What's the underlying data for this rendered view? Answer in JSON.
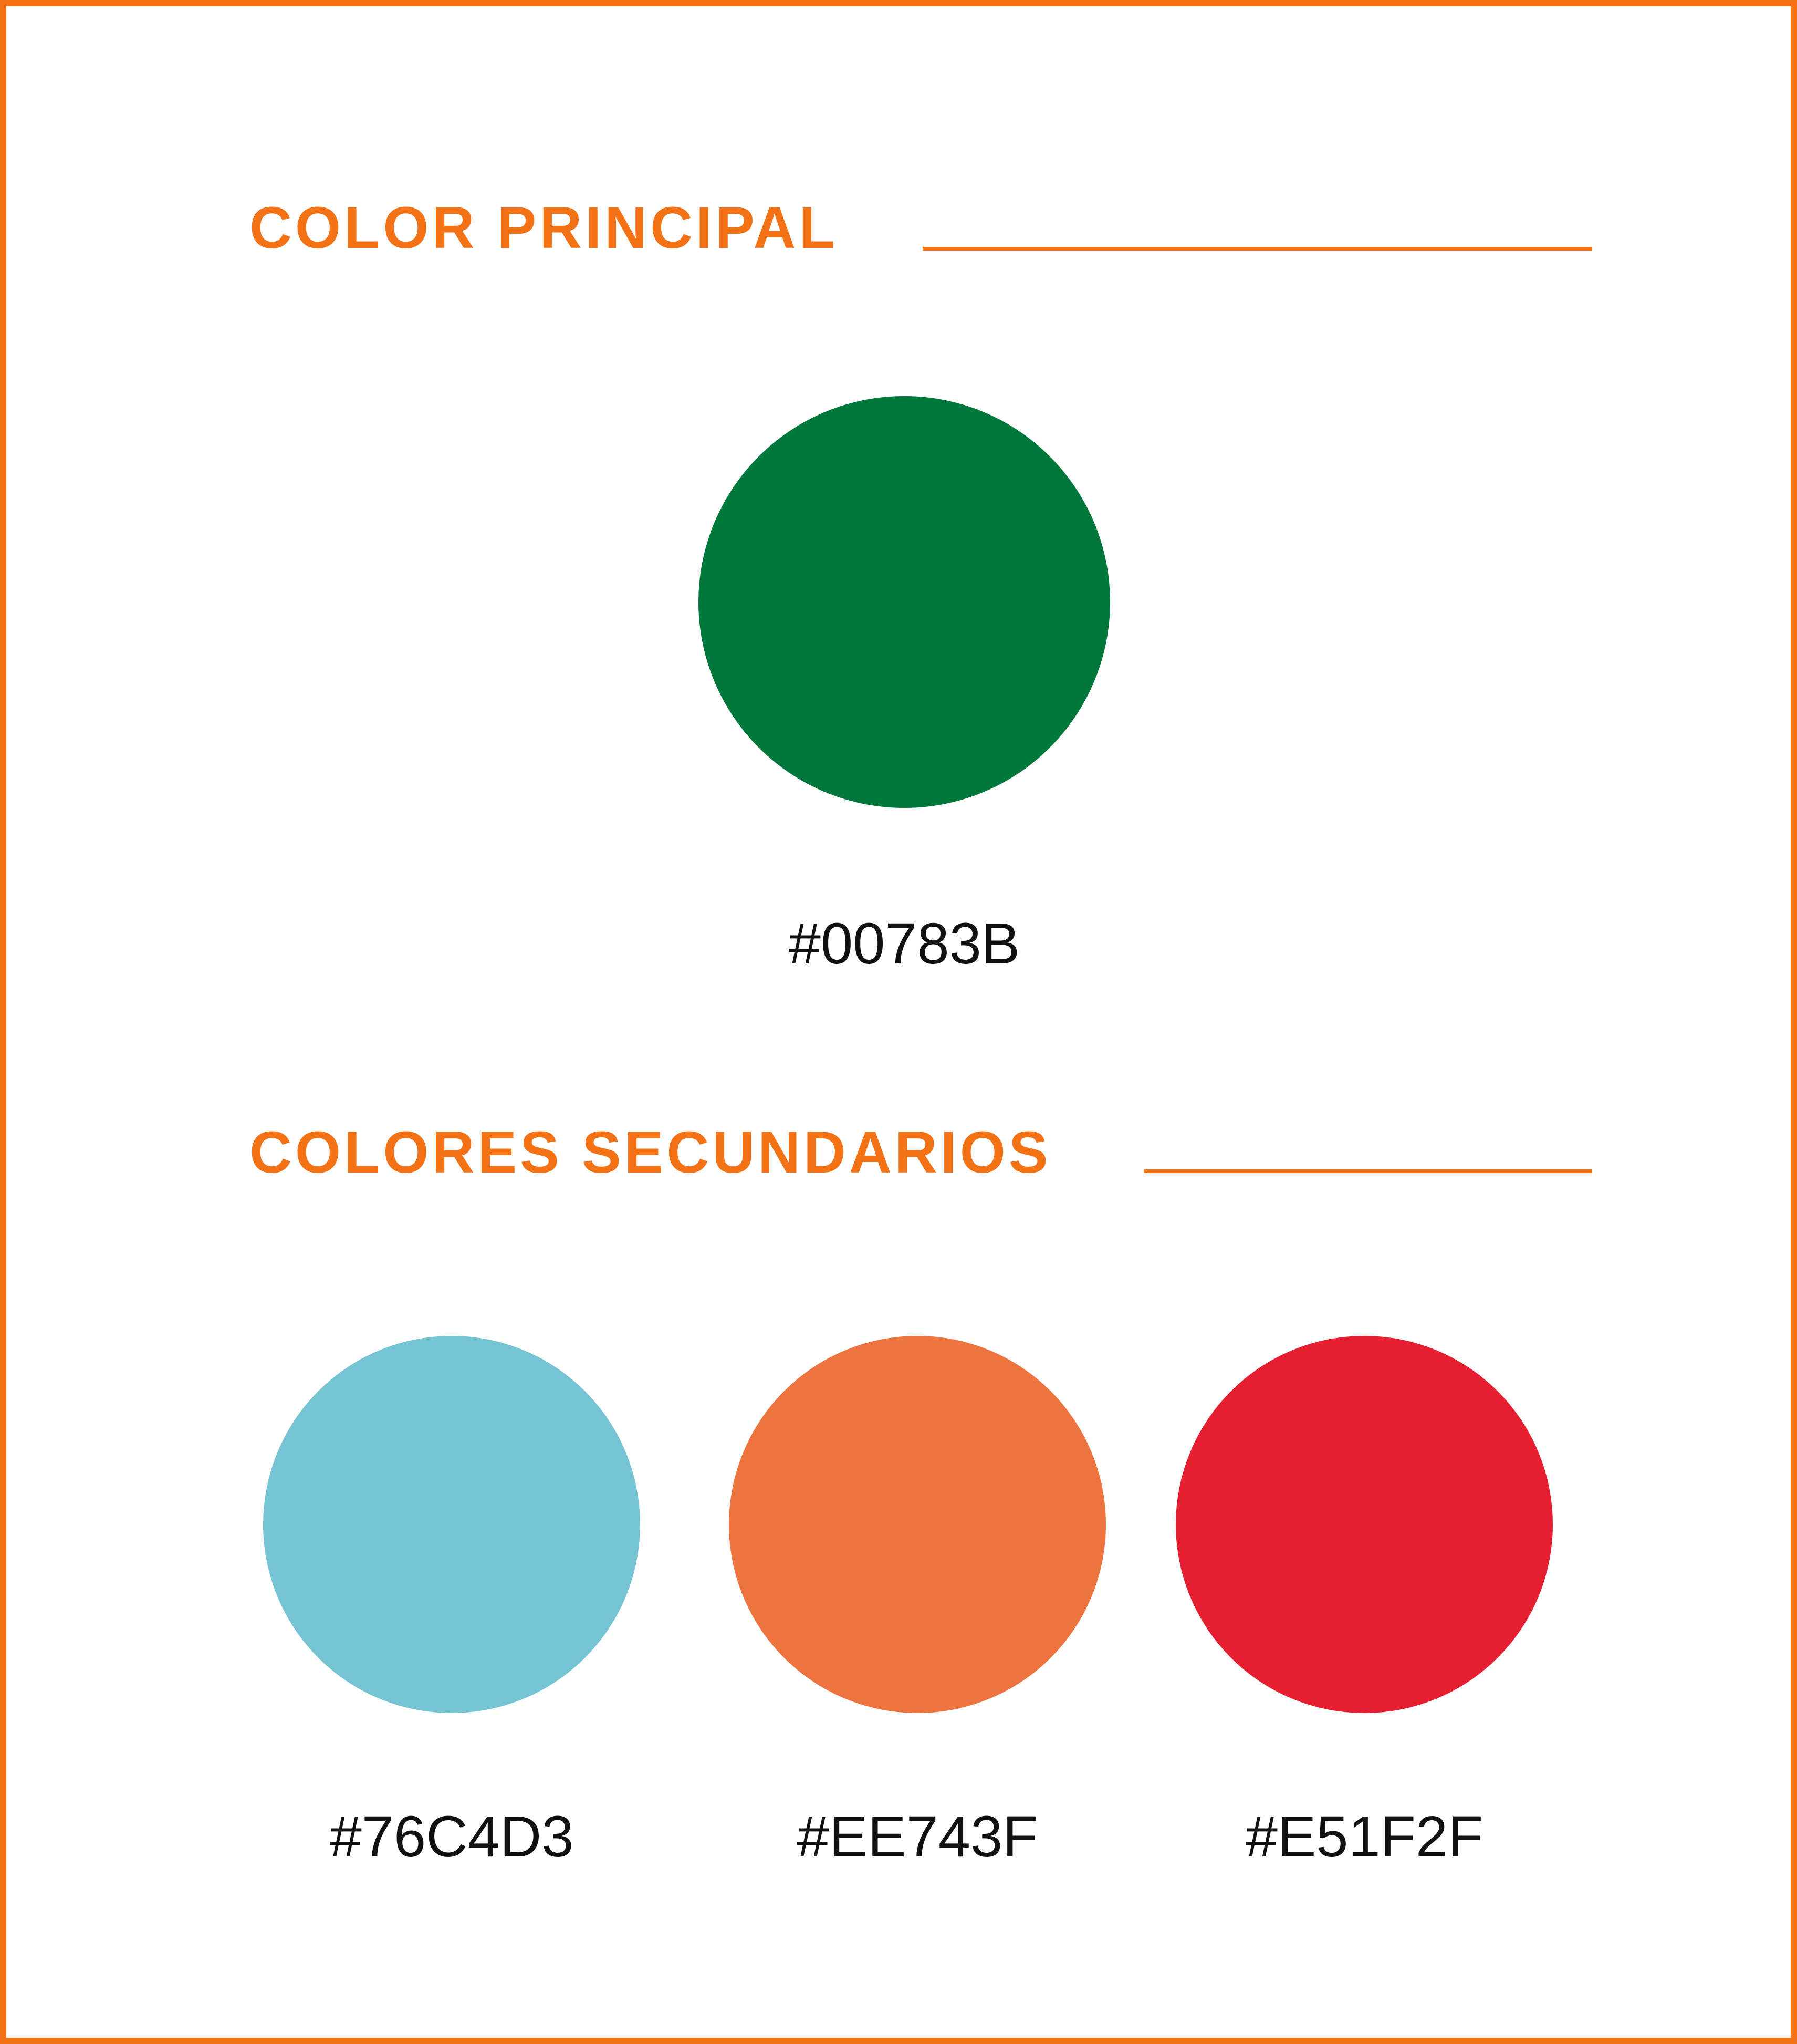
{
  "accent_color": "#F47216",
  "primary": {
    "title": "COLOR PRINCIPAL",
    "swatch": {
      "hex": "#00783B",
      "label": "#00783B"
    }
  },
  "secondary": {
    "title": "COLORES SECUNDARIOS",
    "swatches": [
      {
        "hex": "#76C4D3",
        "label": "#76C4D3"
      },
      {
        "hex": "#EE743F",
        "label": "#EE743F"
      },
      {
        "hex": "#E51F2F",
        "label": "#E51F2F"
      }
    ]
  }
}
